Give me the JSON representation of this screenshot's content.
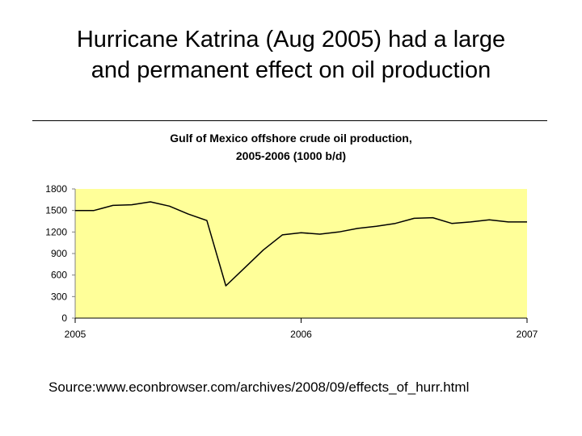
{
  "slide": {
    "title_line1": "Hurricane Katrina (Aug 2005) had a large",
    "title_line2": "and permanent effect on oil production",
    "source": "Source:www.econbrowser.com/archives/2008/09/effects_of_hurr.html"
  },
  "colors": {
    "plot_background": "#FFFF99",
    "line": "#000000"
  },
  "chart_data": {
    "type": "line",
    "title": "Gulf of Mexico offshore crude oil production, 2005-2006 (1000 b/d)",
    "title_line1": "Gulf of Mexico offshore crude oil production,",
    "title_line2": "2005-2006 (1000 b/d)",
    "xlabel": "",
    "ylabel": "",
    "ylim": [
      0,
      1800
    ],
    "yticks": [
      0,
      300,
      600,
      900,
      1200,
      1500,
      1800
    ],
    "xlim": [
      2005,
      2007
    ],
    "xticks": [
      "2005",
      "2006",
      "2007"
    ],
    "grid": false,
    "legend": "none",
    "series": [
      {
        "x": [
          2005.0,
          2005.083,
          2005.167,
          2005.25,
          2005.333,
          2005.417,
          2005.5,
          2005.583,
          2005.667,
          2005.75,
          2005.833,
          2005.917,
          2006.0,
          2006.083,
          2006.167,
          2006.25,
          2006.333,
          2006.417,
          2006.5,
          2006.583,
          2006.667,
          2006.75,
          2006.833,
          2006.917,
          2007.0
        ],
        "y": [
          1500,
          1500,
          1570,
          1580,
          1620,
          1560,
          1450,
          1360,
          450,
          700,
          950,
          1160,
          1190,
          1170,
          1200,
          1250,
          1280,
          1320,
          1390,
          1400,
          1320,
          1340,
          1370,
          1340,
          1340
        ]
      }
    ]
  }
}
